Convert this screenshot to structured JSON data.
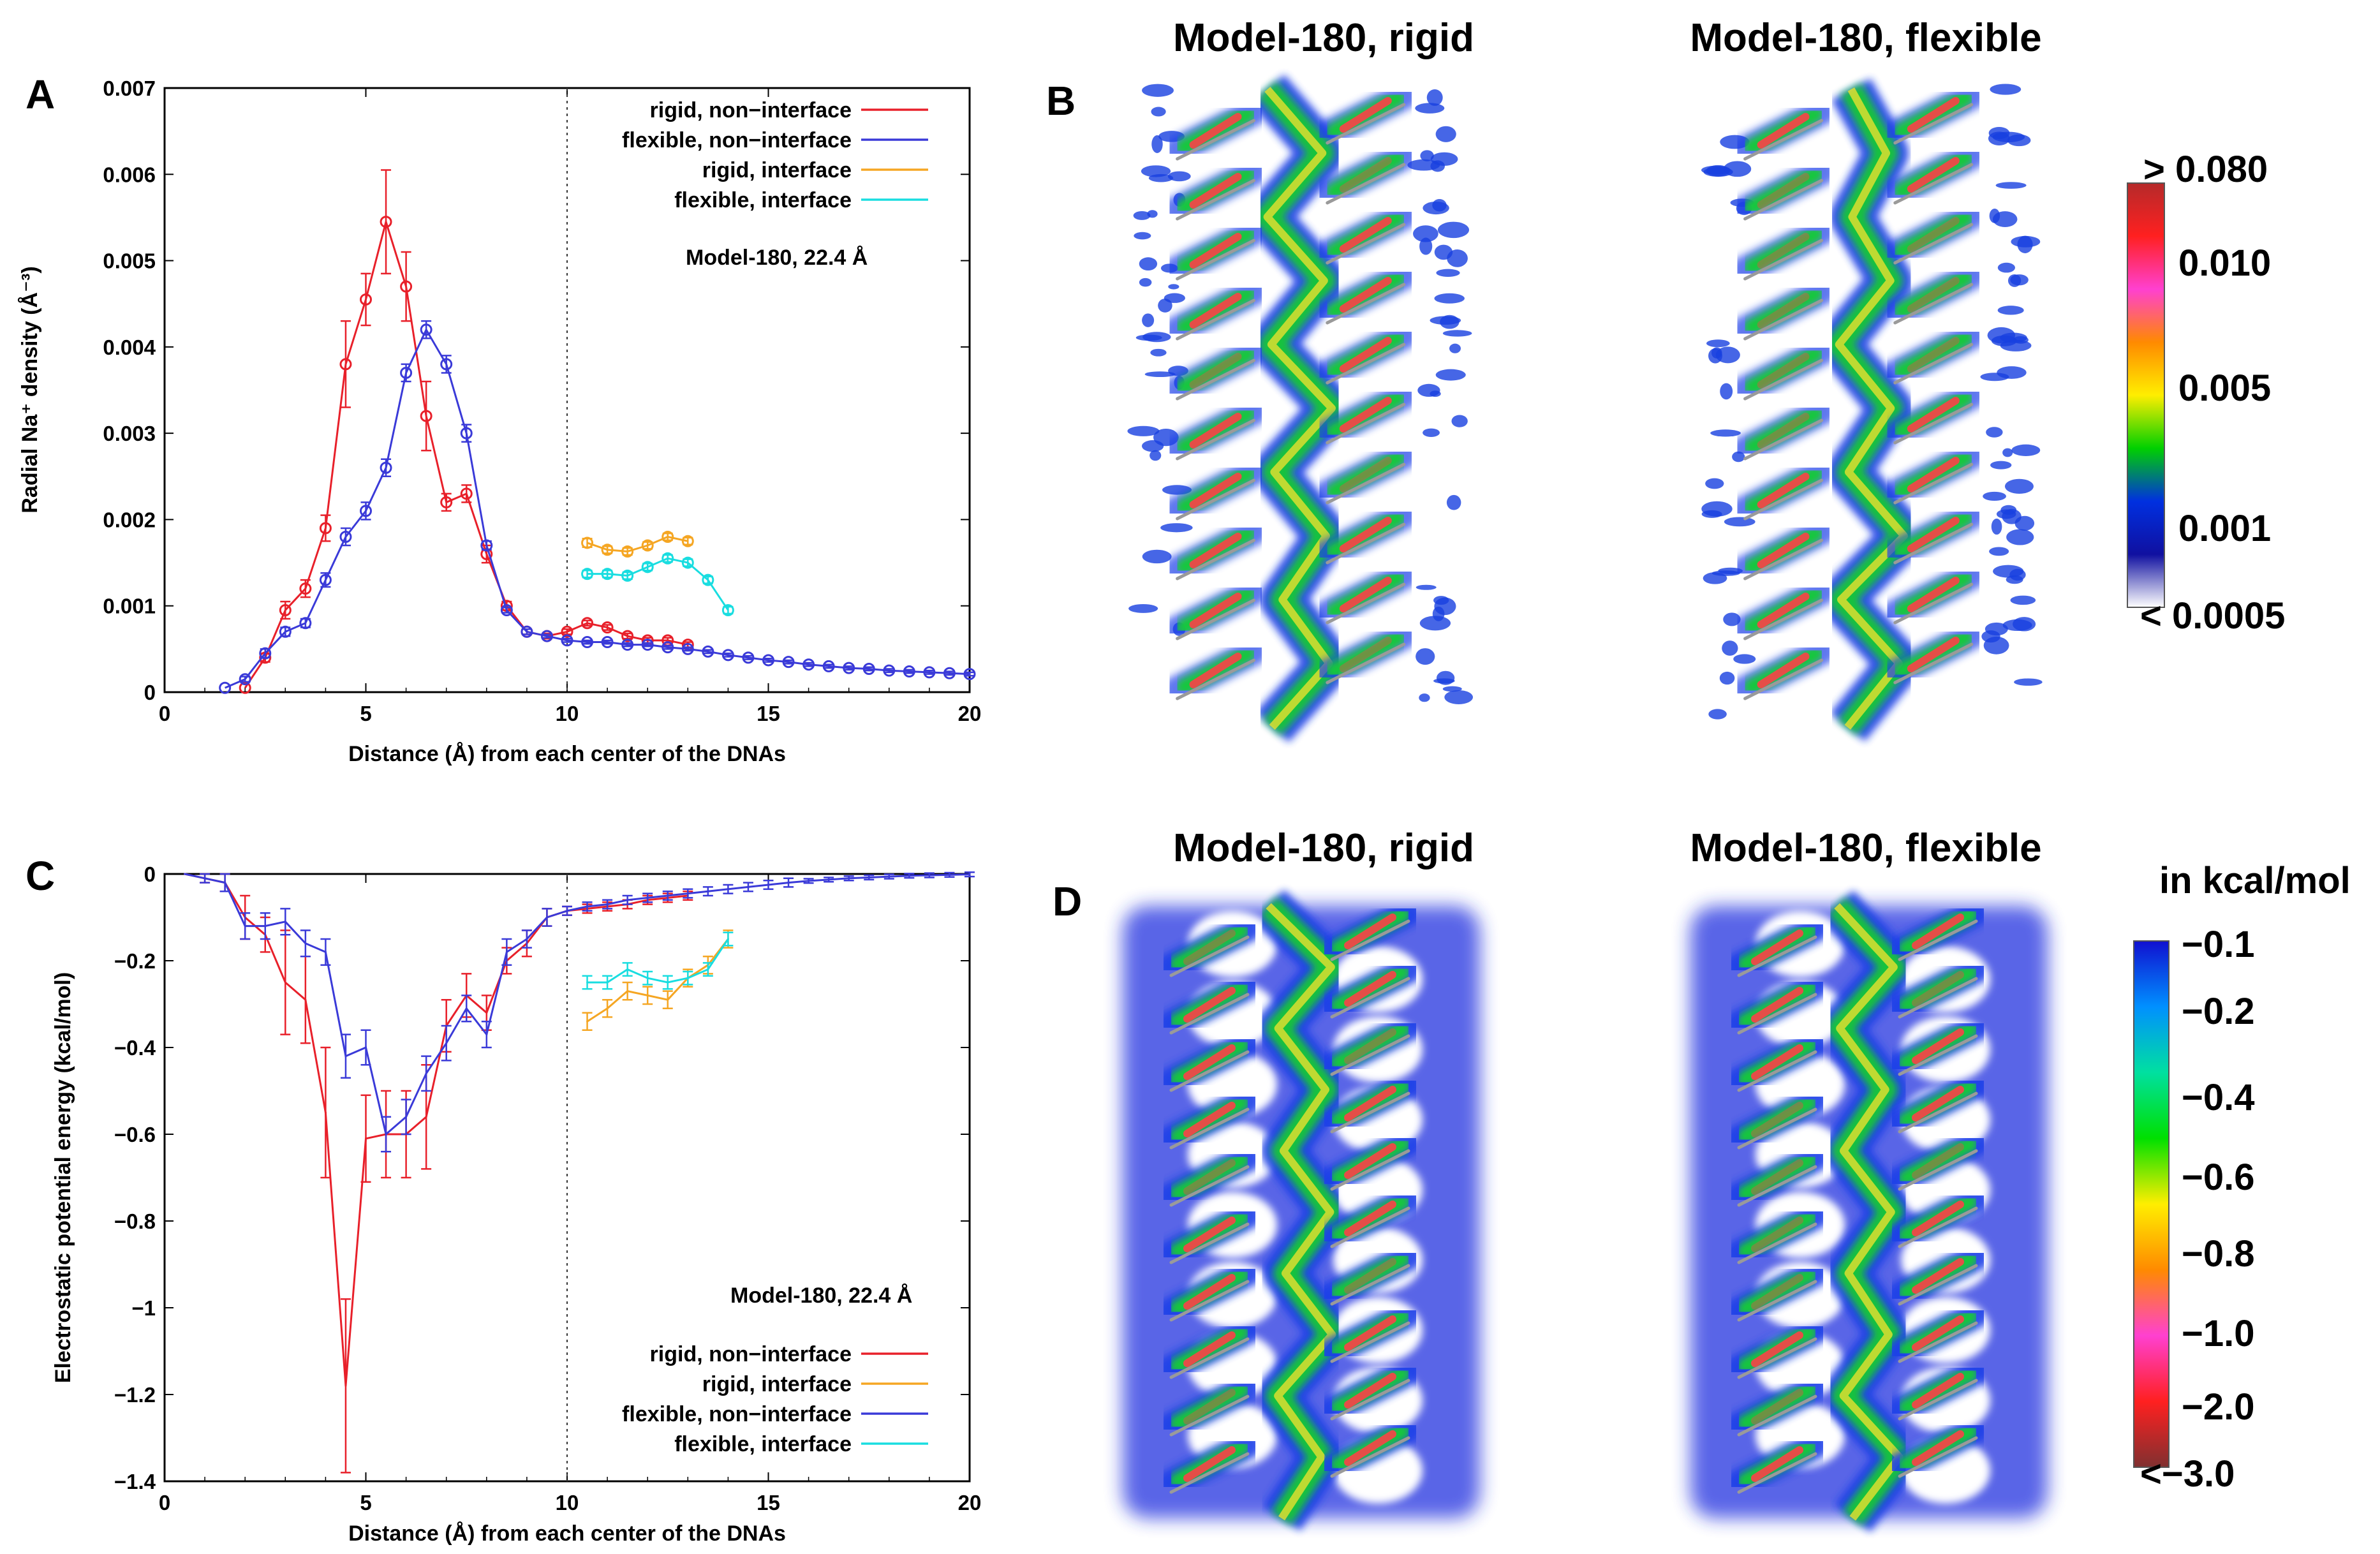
{
  "panels": {
    "a": "A",
    "b": "B",
    "c": "C",
    "d": "D"
  },
  "colors": {
    "rigid_non_interface": "#e8202a",
    "flexible_non_interface": "#3a3ad8",
    "rigid_interface": "#f5a623",
    "flexible_interface": "#19dde0"
  },
  "chart_data": [
    {
      "id": "A",
      "type": "line",
      "title": "",
      "xlabel": "Distance (Å) from each center of the DNAs",
      "ylabel": "Radial Na⁺ density (Å⁻³)",
      "xlim": [
        0,
        20
      ],
      "ylim": [
        0,
        0.007
      ],
      "x_ticks": [
        "0",
        "5",
        "10",
        "15",
        "20"
      ],
      "y_ticks": [
        "0",
        "0.001",
        "0.002",
        "0.003",
        "0.004",
        "0.005",
        "0.006",
        "0.007"
      ],
      "vline_x": 10,
      "annotation": "Model-180, 22.4 Å",
      "legend": [
        "rigid, non−interface",
        "flexible, non−interface",
        "rigid, interface",
        "flexible, interface"
      ],
      "series": [
        {
          "name": "rigid, non−interface",
          "color_key": "rigid_non_interface",
          "x": [
            2,
            2.5,
            3,
            3.5,
            4,
            4.5,
            5,
            5.5,
            6,
            6.5,
            7,
            7.5,
            8,
            8.5,
            9,
            9.5,
            10,
            10.5,
            11,
            11.5,
            12,
            12.5,
            13
          ],
          "y": [
            5e-05,
            0.0004,
            0.00095,
            0.0012,
            0.0019,
            0.0038,
            0.00455,
            0.00545,
            0.0047,
            0.0032,
            0.0022,
            0.0023,
            0.0016,
            0.001,
            0.0007,
            0.00065,
            0.0007,
            0.0008,
            0.00075,
            0.00065,
            0.0006,
            0.0006,
            0.00055
          ],
          "err": [
            0,
            5e-05,
            0.0001,
            0.0001,
            0.00015,
            0.0005,
            0.0003,
            0.0006,
            0.0004,
            0.0004,
            0.0001,
            0.0001,
            0.0001,
            5e-05,
            3e-05,
            3e-05,
            3e-05,
            3e-05,
            3e-05,
            3e-05,
            3e-05,
            3e-05,
            3e-05
          ]
        },
        {
          "name": "flexible, non−interface",
          "color_key": "flexible_non_interface",
          "x": [
            1.5,
            2,
            2.5,
            3,
            3.5,
            4,
            4.5,
            5,
            5.5,
            6,
            6.5,
            7,
            7.5,
            8,
            8.5,
            9,
            9.5,
            10,
            10.5,
            11,
            11.5,
            12,
            12.5,
            13,
            13.5,
            14,
            14.5,
            15,
            15.5,
            16,
            16.5,
            17,
            17.5,
            18,
            18.5,
            19,
            19.5,
            20
          ],
          "y": [
            5e-05,
            0.00015,
            0.00045,
            0.0007,
            0.0008,
            0.0013,
            0.0018,
            0.0021,
            0.0026,
            0.0037,
            0.0042,
            0.0038,
            0.003,
            0.0017,
            0.00095,
            0.0007,
            0.00065,
            0.0006,
            0.00058,
            0.00058,
            0.00055,
            0.00055,
            0.00052,
            0.0005,
            0.00047,
            0.00043,
            0.0004,
            0.00037,
            0.00035,
            0.00032,
            0.0003,
            0.00028,
            0.00027,
            0.00025,
            0.00024,
            0.00023,
            0.00022,
            0.00021
          ],
          "err": [
            0,
            3e-05,
            5e-05,
            5e-05,
            5e-05,
            8e-05,
            0.0001,
            0.0001,
            0.0001,
            0.0001,
            0.0001,
            0.0001,
            0.0001,
            5e-05,
            3e-05,
            3e-05,
            2e-05,
            2e-05,
            2e-05,
            2e-05,
            2e-05,
            2e-05,
            2e-05,
            2e-05,
            2e-05,
            2e-05,
            2e-05,
            2e-05,
            2e-05,
            2e-05,
            2e-05,
            2e-05,
            2e-05,
            2e-05,
            2e-05,
            2e-05,
            2e-05,
            2e-05
          ]
        },
        {
          "name": "rigid, interface",
          "color_key": "rigid_interface",
          "x": [
            10.5,
            11,
            11.5,
            12,
            12.5,
            13
          ],
          "y": [
            0.00173,
            0.00165,
            0.00163,
            0.0017,
            0.0018,
            0.00175
          ],
          "err": [
            5e-05,
            4e-05,
            4e-05,
            4e-05,
            4e-05,
            4e-05
          ]
        },
        {
          "name": "flexible, interface",
          "color_key": "flexible_interface",
          "x": [
            10.5,
            11,
            11.5,
            12,
            12.5,
            13,
            13.5,
            14
          ],
          "y": [
            0.00137,
            0.00137,
            0.00135,
            0.00145,
            0.00155,
            0.0015,
            0.0013,
            0.00095
          ],
          "err": [
            4e-05,
            4e-05,
            4e-05,
            4e-05,
            4e-05,
            4e-05,
            4e-05,
            4e-05
          ]
        }
      ]
    },
    {
      "id": "C",
      "type": "line",
      "title": "",
      "xlabel": "Distance (Å) from each center of the DNAs",
      "ylabel": "Electrostatic potential energy (kcal/mol)",
      "xlim": [
        0,
        20
      ],
      "ylim": [
        -1.4,
        0
      ],
      "x_ticks": [
        "0",
        "5",
        "10",
        "15",
        "20"
      ],
      "y_ticks": [
        "0",
        "−0.2",
        "−0.4",
        "−0.6",
        "−0.8",
        "−1",
        "−1.2",
        "−1.4"
      ],
      "vline_x": 10,
      "annotation": "Model-180, 22.4 Å",
      "legend": [
        "rigid, non−interface",
        "rigid, interface",
        "flexible, non−interface",
        "flexible, interface"
      ],
      "series": [
        {
          "name": "rigid, non−interface",
          "color_key": "rigid_non_interface",
          "x": [
            0.5,
            1,
            1.5,
            2,
            2.5,
            3,
            3.5,
            4,
            4.5,
            5,
            5.5,
            6,
            6.5,
            7,
            7.5,
            8,
            8.5,
            9,
            9.5,
            10,
            10.5,
            11,
            11.5,
            12,
            12.5,
            13
          ],
          "y": [
            0,
            -0.01,
            -0.02,
            -0.1,
            -0.14,
            -0.25,
            -0.29,
            -0.55,
            -1.18,
            -0.61,
            -0.6,
            -0.6,
            -0.56,
            -0.35,
            -0.28,
            -0.32,
            -0.2,
            -0.16,
            -0.1,
            -0.085,
            -0.08,
            -0.075,
            -0.07,
            -0.06,
            -0.055,
            -0.05
          ],
          "err": [
            0,
            0.01,
            0.02,
            0.05,
            0.04,
            0.12,
            0.1,
            0.15,
            0.2,
            0.1,
            0.1,
            0.1,
            0.12,
            0.06,
            0.05,
            0.04,
            0.03,
            0.03,
            0.02,
            0.01,
            0.01,
            0.01,
            0.01,
            0.01,
            0.01,
            0.01
          ]
        },
        {
          "name": "rigid, interface",
          "color_key": "rigid_interface",
          "x": [
            10.5,
            11,
            11.5,
            12,
            12.5,
            13,
            13.5,
            14
          ],
          "y": [
            -0.34,
            -0.31,
            -0.27,
            -0.28,
            -0.29,
            -0.24,
            -0.21,
            -0.15
          ],
          "err": [
            0.02,
            0.02,
            0.02,
            0.02,
            0.02,
            0.02,
            0.02,
            0.02
          ]
        },
        {
          "name": "flexible, non−interface",
          "color_key": "flexible_non_interface",
          "x": [
            0.5,
            1,
            1.5,
            2,
            2.5,
            3,
            3.5,
            4,
            4.5,
            5,
            5.5,
            6,
            6.5,
            7,
            7.5,
            8,
            8.5,
            9,
            9.5,
            10,
            10.5,
            11,
            11.5,
            12,
            12.5,
            13,
            13.5,
            14,
            14.5,
            15,
            15.5,
            16,
            16.5,
            17,
            17.5,
            18,
            18.5,
            19,
            19.5,
            20
          ],
          "y": [
            0,
            -0.01,
            -0.02,
            -0.12,
            -0.12,
            -0.11,
            -0.16,
            -0.18,
            -0.42,
            -0.4,
            -0.6,
            -0.56,
            -0.46,
            -0.39,
            -0.31,
            -0.37,
            -0.18,
            -0.15,
            -0.1,
            -0.085,
            -0.075,
            -0.07,
            -0.06,
            -0.055,
            -0.05,
            -0.045,
            -0.04,
            -0.035,
            -0.03,
            -0.025,
            -0.02,
            -0.016,
            -0.013,
            -0.01,
            -0.008,
            -0.006,
            -0.004,
            -0.003,
            -0.002,
            -0.001
          ],
          "err": [
            0,
            0.01,
            0.02,
            0.03,
            0.03,
            0.03,
            0.03,
            0.03,
            0.05,
            0.04,
            0.04,
            0.04,
            0.04,
            0.04,
            0.03,
            0.03,
            0.03,
            0.02,
            0.02,
            0.01,
            0.01,
            0.01,
            0.01,
            0.01,
            0.01,
            0.01,
            0.01,
            0.01,
            0.01,
            0.01,
            0.01,
            0.005,
            0.005,
            0.005,
            0.005,
            0.005,
            0.005,
            0.005,
            0.005,
            0.005
          ]
        },
        {
          "name": "flexible, interface",
          "color_key": "flexible_interface",
          "x": [
            10.5,
            11,
            11.5,
            12,
            12.5,
            13,
            13.5,
            14
          ],
          "y": [
            -0.25,
            -0.25,
            -0.22,
            -0.24,
            -0.25,
            -0.24,
            -0.22,
            -0.15
          ],
          "err": [
            0.015,
            0.015,
            0.015,
            0.015,
            0.015,
            0.015,
            0.015,
            0.015
          ]
        }
      ]
    }
  ],
  "maps": {
    "b": {
      "title_left": "Model-180, rigid",
      "title_right": "Model-180, flexible",
      "colorbar_labels": [
        "> 0.080",
        "0.010",
        "0.005",
        "0.001",
        "< 0.0005"
      ],
      "colorbar_stops": [
        "#b52a2a",
        "#ff2020",
        "#ff40d0",
        "#ff8a00",
        "#ffee00",
        "#00d000",
        "#0030e0",
        "#1010a0",
        "#ffffff"
      ]
    },
    "d": {
      "title_left": "Model-180, rigid",
      "title_right": "Model-180, flexible",
      "unit_label": "in kcal/mol",
      "colorbar_labels": [
        "−0.1",
        "−0.2",
        "−0.4",
        "−0.6",
        "−0.8",
        "−1.0",
        "−2.0",
        "<−3.0"
      ],
      "colorbar_stops": [
        "#1010d0",
        "#0090ff",
        "#00e0a0",
        "#00e000",
        "#ffee00",
        "#ff8a00",
        "#ff40d0",
        "#ff2020",
        "#803030"
      ]
    }
  }
}
